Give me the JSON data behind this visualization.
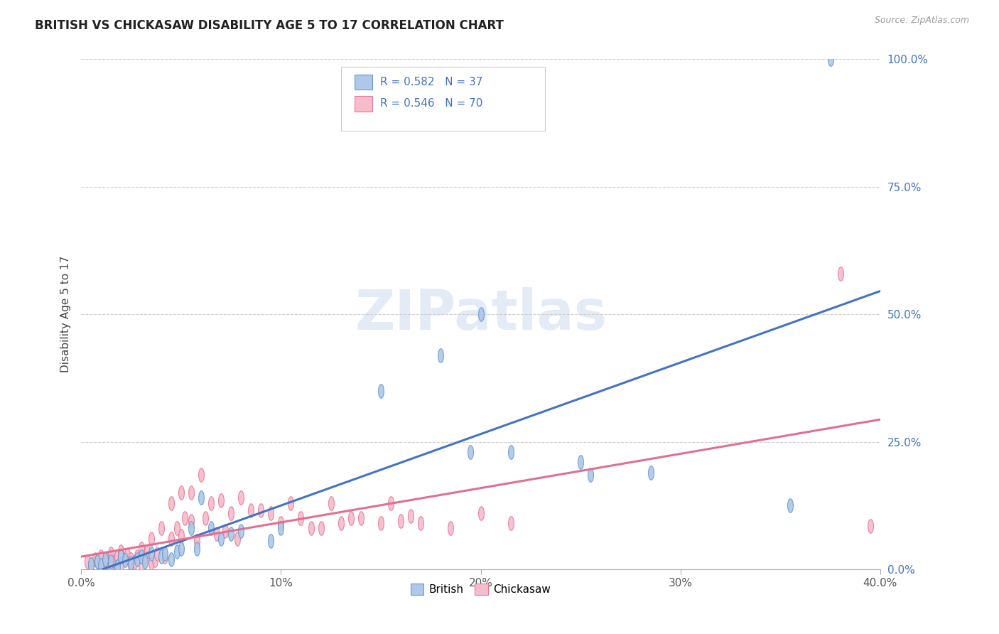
{
  "title": "BRITISH VS CHICKASAW DISABILITY AGE 5 TO 17 CORRELATION CHART",
  "source": "Source: ZipAtlas.com",
  "ylabel": "Disability Age 5 to 17",
  "xlim": [
    0,
    0.4
  ],
  "ylim": [
    0,
    1.0
  ],
  "xtick_labels": [
    "0.0%",
    "10%",
    "20%",
    "30%",
    "40.0%"
  ],
  "xtick_vals": [
    0.0,
    0.1,
    0.2,
    0.3,
    0.4
  ],
  "ytick_labels": [
    "100.0%",
    "75.0%",
    "50.0%",
    "25.0%",
    "0.0%"
  ],
  "ytick_vals": [
    1.0,
    0.75,
    0.5,
    0.25,
    0.0
  ],
  "british_color": "#adc8e8",
  "british_edge": "#6699cc",
  "chickasaw_color": "#f5bccb",
  "chickasaw_edge": "#e87898",
  "british_line_color": "#4472c4",
  "chickasaw_line_color": "#e07090",
  "british_R": 0.582,
  "british_N": 37,
  "chickasaw_R": 0.546,
  "chickasaw_N": 70,
  "watermark": "ZIPatlas",
  "british_x": [
    0.005,
    0.008,
    0.01,
    0.012,
    0.015,
    0.018,
    0.02,
    0.022,
    0.025,
    0.028,
    0.03,
    0.032,
    0.035,
    0.04,
    0.042,
    0.045,
    0.048,
    0.05,
    0.055,
    0.058,
    0.06,
    0.065,
    0.07,
    0.075,
    0.08,
    0.095,
    0.1,
    0.15,
    0.18,
    0.195,
    0.2,
    0.215,
    0.25,
    0.255,
    0.285,
    0.355,
    0.375
  ],
  "british_y": [
    0.01,
    0.015,
    0.008,
    0.02,
    0.015,
    0.005,
    0.025,
    0.018,
    0.012,
    0.02,
    0.025,
    0.015,
    0.03,
    0.025,
    0.03,
    0.02,
    0.035,
    0.04,
    0.08,
    0.04,
    0.14,
    0.08,
    0.06,
    0.07,
    0.075,
    0.055,
    0.08,
    0.35,
    0.42,
    0.23,
    0.5,
    0.23,
    0.21,
    0.185,
    0.19,
    0.125,
    1.0
  ],
  "chickasaw_x": [
    0.003,
    0.005,
    0.007,
    0.008,
    0.01,
    0.01,
    0.012,
    0.013,
    0.015,
    0.015,
    0.017,
    0.018,
    0.02,
    0.02,
    0.022,
    0.023,
    0.025,
    0.025,
    0.027,
    0.028,
    0.03,
    0.03,
    0.032,
    0.033,
    0.035,
    0.035,
    0.037,
    0.038,
    0.04,
    0.042,
    0.045,
    0.045,
    0.048,
    0.05,
    0.05,
    0.052,
    0.055,
    0.055,
    0.058,
    0.06,
    0.062,
    0.065,
    0.068,
    0.07,
    0.072,
    0.075,
    0.078,
    0.08,
    0.085,
    0.09,
    0.095,
    0.1,
    0.105,
    0.11,
    0.115,
    0.12,
    0.125,
    0.13,
    0.135,
    0.14,
    0.15,
    0.155,
    0.16,
    0.165,
    0.17,
    0.185,
    0.2,
    0.215,
    0.38,
    0.395
  ],
  "chickasaw_y": [
    0.015,
    0.01,
    0.02,
    0.015,
    0.008,
    0.025,
    0.012,
    0.02,
    0.01,
    0.03,
    0.015,
    0.025,
    0.008,
    0.035,
    0.02,
    0.028,
    0.01,
    0.02,
    0.015,
    0.025,
    0.008,
    0.04,
    0.025,
    0.035,
    0.012,
    0.06,
    0.018,
    0.03,
    0.08,
    0.025,
    0.13,
    0.06,
    0.08,
    0.065,
    0.15,
    0.1,
    0.095,
    0.15,
    0.055,
    0.185,
    0.1,
    0.13,
    0.07,
    0.135,
    0.075,
    0.11,
    0.06,
    0.14,
    0.115,
    0.115,
    0.11,
    0.09,
    0.13,
    0.1,
    0.08,
    0.08,
    0.13,
    0.09,
    0.1,
    0.1,
    0.09,
    0.13,
    0.095,
    0.105,
    0.09,
    0.08,
    0.11,
    0.09,
    0.58,
    0.085
  ]
}
